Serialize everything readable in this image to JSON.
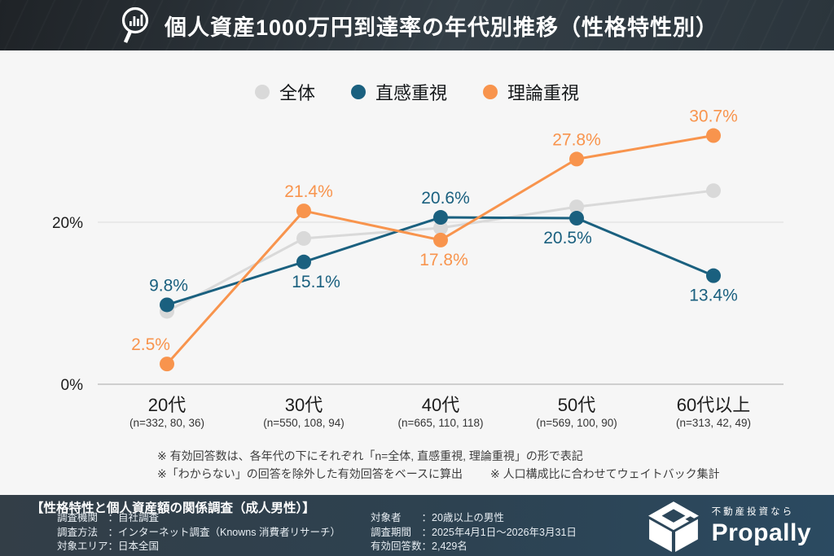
{
  "header": {
    "title": "個人資産1000万円到達率の年代別推移（性格特性別）",
    "icon": "magnifier-bar-chart-icon"
  },
  "legend": [
    {
      "label": "全体",
      "color": "#d9d9d9"
    },
    {
      "label": "直感重視",
      "color": "#1a607f"
    },
    {
      "label": "理論重視",
      "color": "#f8944d"
    }
  ],
  "chart_data": {
    "type": "line",
    "title": "個人資産1000万円到達率の年代別推移（性格特性別）",
    "categories": [
      "20代",
      "30代",
      "40代",
      "50代",
      "60代以上"
    ],
    "n_labels": [
      "(n=332, 80, 36)",
      "(n=550, 108, 94)",
      "(n=665, 110, 118)",
      "(n=569, 100, 90)",
      "(n=313, 42, 49)"
    ],
    "series": [
      {
        "name": "全体",
        "color": "#d9d9d9",
        "values": [
          9.0,
          18.0,
          19.3,
          21.9,
          23.9
        ],
        "labels": [
          null,
          null,
          null,
          null,
          null
        ]
      },
      {
        "name": "直感重視",
        "color": "#1a607f",
        "values": [
          9.8,
          15.1,
          20.6,
          20.5,
          13.4
        ],
        "labels": [
          {
            "text": "9.8%",
            "pos": "above",
            "dx": 2
          },
          {
            "text": "15.1%",
            "pos": "below",
            "dx": 15
          },
          {
            "text": "20.6%",
            "pos": "above",
            "dx": 6
          },
          {
            "text": "20.5%",
            "pos": "below",
            "dx": -11
          },
          {
            "text": "13.4%",
            "pos": "below",
            "dx": 0
          }
        ]
      },
      {
        "name": "理論重視",
        "color": "#f8944d",
        "values": [
          2.5,
          21.4,
          17.8,
          27.8,
          30.7
        ],
        "labels": [
          {
            "text": "2.5%",
            "pos": "above",
            "dx": -20
          },
          {
            "text": "21.4%",
            "pos": "above",
            "dx": 6
          },
          {
            "text": "17.8%",
            "pos": "below",
            "dx": 4
          },
          {
            "text": "27.8%",
            "pos": "above",
            "dx": 0
          },
          {
            "text": "30.7%",
            "pos": "above",
            "dx": 0
          }
        ]
      }
    ],
    "xlabel": "",
    "ylabel": "",
    "yticks": [
      {
        "value": 0,
        "label": "0%"
      },
      {
        "value": 20,
        "label": "20%"
      }
    ],
    "ylim": [
      0,
      34
    ],
    "grid": "horizontal gridline at 20% only, baseline at 0%",
    "legend_position": "top-center"
  },
  "notes": {
    "line1": "※ 有効回答数は、各年代の下にそれぞれ「n=全体, 直感重視, 理論重視」の形で表記",
    "line2a": "※「わからない」の回答を除外した有効回答をベースに算出",
    "line2b": "※ 人口構成比に合わせてウェイトバック集計"
  },
  "footer": {
    "title": "【性格特性と個人資産額の関係調査（成人男性）】",
    "left": [
      {
        "label": "調査機関　：",
        "value": "自社調査"
      },
      {
        "label": "調査方法　：",
        "value": "インターネット調査（Knowns 消費者リサーチ）"
      },
      {
        "label": "対象エリア：",
        "value": "日本全国"
      }
    ],
    "right": [
      {
        "label": "対象者　　：",
        "value": "20歳以上の男性"
      },
      {
        "label": "調査期間　：",
        "value": "2025年4月1日～2026年3月31日"
      },
      {
        "label": "有効回答数：",
        "value": "2,429名"
      }
    ],
    "logo": {
      "tagline": "不動産投資なら",
      "brand": "Propally"
    }
  }
}
